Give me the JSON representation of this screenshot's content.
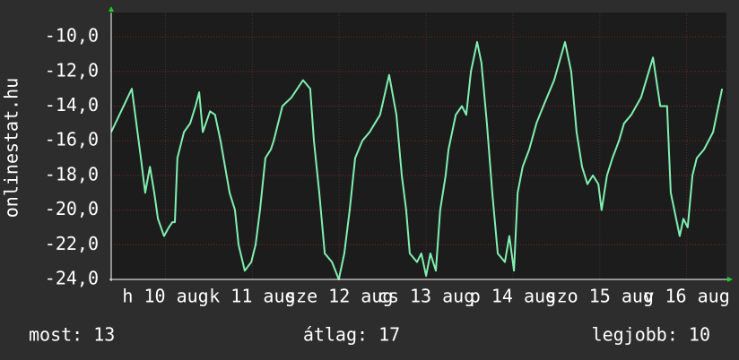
{
  "chart_data": {
    "type": "line",
    "y_label": "onlinestat.hu",
    "x": [
      0,
      5.7,
      8.2,
      9.4,
      10.7,
      11.9,
      12.9,
      14.6,
      15.9,
      16.9,
      17.6,
      18.3,
      20.1,
      21.8,
      23.3,
      24.3,
      25.3,
      27.3,
      28.7,
      30.2,
      32.7,
      34.2,
      35.2,
      36.9,
      38.7,
      39.9,
      41.1,
      42.6,
      44.1,
      44.9,
      47.3,
      49.8,
      53.0,
      55.0,
      56.0,
      57.5,
      59.0,
      61.0,
      62.9,
      64.4,
      65.9,
      67.4,
      69.4,
      71.4,
      74.3,
      76.8,
      78.8,
      80.3,
      81.5,
      82.5,
      84.5,
      85.7,
      87.0,
      88.2,
      89.7,
      90.9,
      92.4,
      93.2,
      95.2,
      96.9,
      98.1,
      99.4,
      101.1,
      102.3,
      103.8,
      105.3,
      106.8,
      108.8,
      110.0,
      111.3,
      112.3,
      113.7,
      115.5,
      117.5,
      119.4,
      122.4,
      125.4,
      127.1,
      128.6,
      130.1,
      131.6,
      133.1,
      134.6,
      135.5,
      137.0,
      138.5,
      140.3,
      141.7,
      143.7,
      146.4,
      149.7,
      151.7,
      153.6,
      154.6,
      157.1,
      158.1,
      159.3,
      160.6,
      161.8,
      163.8,
      166.3,
      168.8
    ],
    "values": [
      -15.5,
      -13,
      -17,
      -19,
      -17.5,
      -19,
      -20.5,
      -21.5,
      -21,
      -20.7,
      -20.7,
      -17,
      -15.5,
      -15,
      -14,
      -13.2,
      -15.5,
      -14.3,
      -14.5,
      -16,
      -19,
      -20,
      -22,
      -23.5,
      -23,
      -22,
      -20,
      -17,
      -16.5,
      -16,
      -14,
      -13.5,
      -12.5,
      -13,
      -16,
      -19,
      -22.5,
      -23,
      -24,
      -22.5,
      -20,
      -17,
      -16,
      -15.5,
      -14.5,
      -12.2,
      -14.5,
      -18,
      -20,
      -22.5,
      -23,
      -22.5,
      -23.8,
      -22.5,
      -23.5,
      -20,
      -18,
      -16.5,
      -14.5,
      -14,
      -14.5,
      -12,
      -10.3,
      -11.5,
      -15,
      -19,
      -22.5,
      -23,
      -21.5,
      -23.5,
      -19,
      -17.5,
      -16.5,
      -15,
      -14,
      -12.5,
      -10.3,
      -12,
      -15.5,
      -17.5,
      -18.5,
      -18,
      -18.5,
      -20,
      -18,
      -17,
      -16,
      -15,
      -14.5,
      -13.5,
      -11.2,
      -14,
      -14,
      -19,
      -21.5,
      -20.5,
      -21,
      -18,
      -17,
      -16.5,
      -15.5,
      -13
    ],
    "color": "#80f0b0",
    "xlim": [
      0,
      170
    ],
    "xticks": [
      {
        "value": 15,
        "label": "h 10 aug"
      },
      {
        "value": 39,
        "label": "k 11 aug"
      },
      {
        "value": 63,
        "label": "sze 12 aug"
      },
      {
        "value": 87,
        "label": "cs 13 aug"
      },
      {
        "value": 111,
        "label": "p 14 aug"
      },
      {
        "value": 135,
        "label": "szo 15 aug"
      },
      {
        "value": 159,
        "label": "v 16 aug"
      }
    ],
    "ylim": [
      -24,
      -8.6
    ],
    "yticks": [
      {
        "value": -24,
        "label": "-24,0"
      },
      {
        "value": -22,
        "label": "-22,0"
      },
      {
        "value": -20,
        "label": "-20,0"
      },
      {
        "value": -18,
        "label": "-18,0"
      },
      {
        "value": -16,
        "label": "-16,0"
      },
      {
        "value": -14,
        "label": "-14,0"
      },
      {
        "value": -12,
        "label": "-12,0"
      },
      {
        "value": -10,
        "label": "-10,0"
      }
    ],
    "grid": true,
    "footer": [
      "most: 13",
      "átlag: 17",
      "legjobb: 10"
    ]
  }
}
